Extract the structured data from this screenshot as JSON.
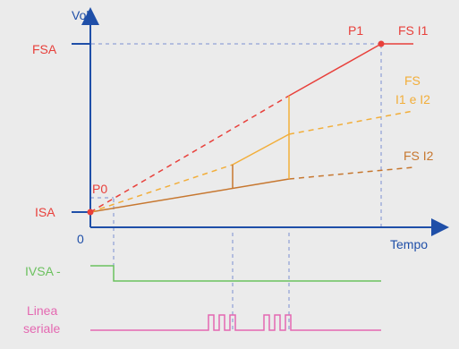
{
  "axes": {
    "y_label": "Volt",
    "x_label": "Tempo",
    "origin_label": "0"
  },
  "levels": {
    "fsa": "FSA",
    "isa": "ISA"
  },
  "points": {
    "p0": "P0",
    "p1": "P1"
  },
  "curves": {
    "fs_i1": "FS I1",
    "fs_i1_i2_line1": "FS",
    "fs_i1_i2_line2": "I1 e I2",
    "fs_i2": "FS I2"
  },
  "signals": {
    "ivsa": "IVSA -",
    "serial_line1": "Linea",
    "serial_line2": "seriale"
  },
  "colors": {
    "background": "#ebebeb",
    "axis": "#1f4fa8",
    "red": "#e8403b",
    "orange": "#f2ae3a",
    "brown": "#c7772f",
    "green": "#6bc15e",
    "magenta": "#e468b1",
    "guide": "#7b8fd0"
  }
}
